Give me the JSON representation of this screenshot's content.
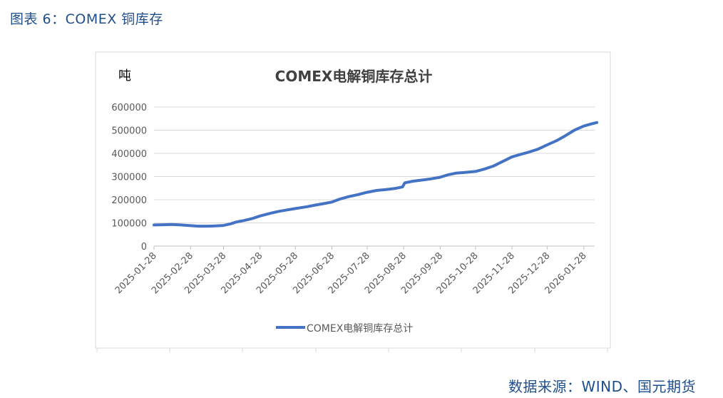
{
  "caption": "图表 6：COMEX 铜库存",
  "source": "数据来源：WIND、国元期货",
  "colors": {
    "line": "#4472c4",
    "grid": "#d9d9d9",
    "text": "#595959",
    "caption": "#1f4e8c"
  },
  "chart_data": {
    "type": "line",
    "title": "COMEX电解铜库存总计",
    "ylabel": "吨",
    "xlabel": "",
    "ylim": [
      0,
      600000
    ],
    "yticks": [
      0,
      100000,
      200000,
      300000,
      400000,
      500000,
      600000
    ],
    "xlim": [
      "2025-01-28",
      "2026-02-10"
    ],
    "xticks": [
      "2025-01-28",
      "2025-02-28",
      "2025-03-28",
      "2025-04-28",
      "2025-05-28",
      "2025-06-28",
      "2025-07-28",
      "2025-08-28",
      "2025-09-28",
      "2025-10-28",
      "2025-11-28",
      "2025-12-28",
      "2026-01-28"
    ],
    "grid": true,
    "legend_position": "bottom",
    "series": [
      {
        "name": "COMEX电解铜库存总计",
        "points": [
          [
            "2025-01-28",
            91000
          ],
          [
            "2025-02-05",
            92000
          ],
          [
            "2025-02-12",
            93000
          ],
          [
            "2025-02-20",
            91000
          ],
          [
            "2025-02-28",
            88000
          ],
          [
            "2025-03-07",
            86000
          ],
          [
            "2025-03-14",
            86000
          ],
          [
            "2025-03-21",
            87000
          ],
          [
            "2025-03-28",
            89000
          ],
          [
            "2025-04-03",
            96000
          ],
          [
            "2025-04-08",
            104000
          ],
          [
            "2025-04-14",
            110000
          ],
          [
            "2025-04-21",
            118000
          ],
          [
            "2025-04-28",
            130000
          ],
          [
            "2025-05-07",
            142000
          ],
          [
            "2025-05-14",
            150000
          ],
          [
            "2025-05-21",
            156000
          ],
          [
            "2025-05-28",
            162000
          ],
          [
            "2025-06-07",
            170000
          ],
          [
            "2025-06-14",
            177000
          ],
          [
            "2025-06-21",
            183000
          ],
          [
            "2025-06-28",
            190000
          ],
          [
            "2025-07-05",
            203000
          ],
          [
            "2025-07-12",
            213000
          ],
          [
            "2025-07-20",
            222000
          ],
          [
            "2025-07-28",
            232000
          ],
          [
            "2025-08-05",
            240000
          ],
          [
            "2025-08-13",
            244000
          ],
          [
            "2025-08-20",
            248000
          ],
          [
            "2025-08-27",
            255000
          ],
          [
            "2025-08-29",
            273000
          ],
          [
            "2025-09-05",
            280000
          ],
          [
            "2025-09-13",
            285000
          ],
          [
            "2025-09-20",
            290000
          ],
          [
            "2025-09-28",
            297000
          ],
          [
            "2025-10-05",
            308000
          ],
          [
            "2025-10-12",
            315000
          ],
          [
            "2025-10-20",
            318000
          ],
          [
            "2025-10-28",
            322000
          ],
          [
            "2025-11-05",
            333000
          ],
          [
            "2025-11-12",
            345000
          ],
          [
            "2025-11-20",
            365000
          ],
          [
            "2025-11-28",
            385000
          ],
          [
            "2025-12-05",
            395000
          ],
          [
            "2025-12-12",
            405000
          ],
          [
            "2025-12-20",
            418000
          ],
          [
            "2025-12-28",
            437000
          ],
          [
            "2026-01-05",
            455000
          ],
          [
            "2026-01-12",
            475000
          ],
          [
            "2026-01-20",
            500000
          ],
          [
            "2026-01-28",
            518000
          ],
          [
            "2026-02-04",
            528000
          ],
          [
            "2026-02-08",
            533000
          ]
        ]
      }
    ]
  }
}
